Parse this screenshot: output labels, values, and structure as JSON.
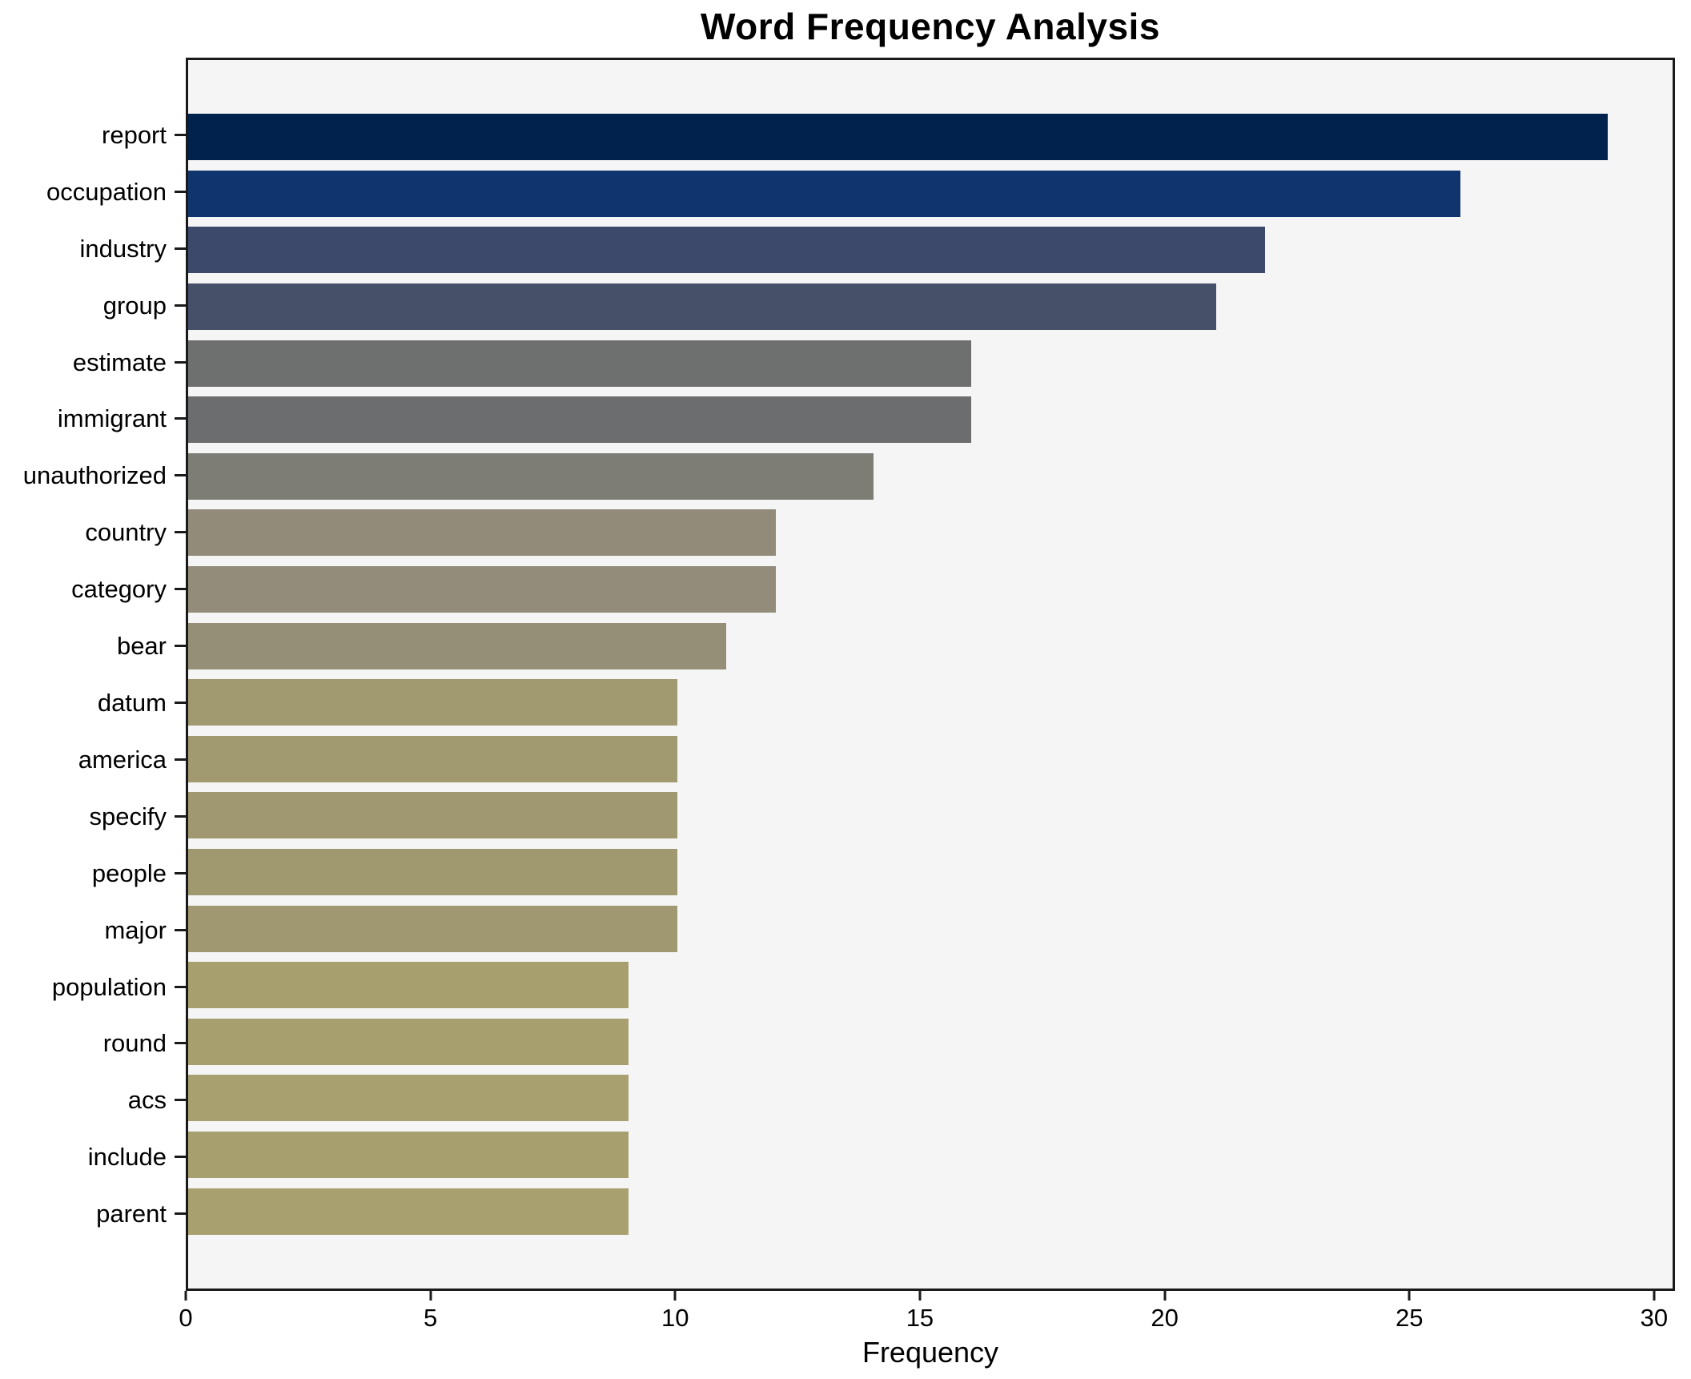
{
  "title": "Word Frequency Analysis",
  "xlabel": "Frequency",
  "chart_data": {
    "type": "bar",
    "orientation": "horizontal",
    "title": "Word Frequency Analysis",
    "xlabel": "Frequency",
    "ylabel": "",
    "categories": [
      "report",
      "occupation",
      "industry",
      "group",
      "estimate",
      "immigrant",
      "unauthorized",
      "country",
      "category",
      "bear",
      "datum",
      "america",
      "specify",
      "people",
      "major",
      "population",
      "round",
      "acs",
      "include",
      "parent"
    ],
    "values": [
      29,
      26,
      22,
      21,
      16,
      16,
      14,
      12,
      12,
      11,
      10,
      10,
      10,
      10,
      10,
      9,
      9,
      9,
      9,
      9
    ],
    "bar_colors": [
      "#00224d",
      "#10356e",
      "#3c496b",
      "#465069",
      "#6e7070",
      "#6c6d6e",
      "#7d7d76",
      "#928b7a",
      "#938c7a",
      "#968f77",
      "#a1996f",
      "#a1996f",
      "#a09870",
      "#a09970",
      "#a09870",
      "#a89f6f",
      "#a89f6f",
      "#a8a06f",
      "#a89f6f",
      "#a9a06f"
    ],
    "xlim": [
      0,
      30
    ],
    "x_ticks": [
      0,
      5,
      10,
      15,
      20,
      25,
      30
    ],
    "grid": false,
    "legend": false,
    "plot_background": "#f5f5f6",
    "figure_background": "#ffffff",
    "spine_color": "#1a1a1a",
    "colormap_note": "cividis reversed, shaded by value"
  }
}
